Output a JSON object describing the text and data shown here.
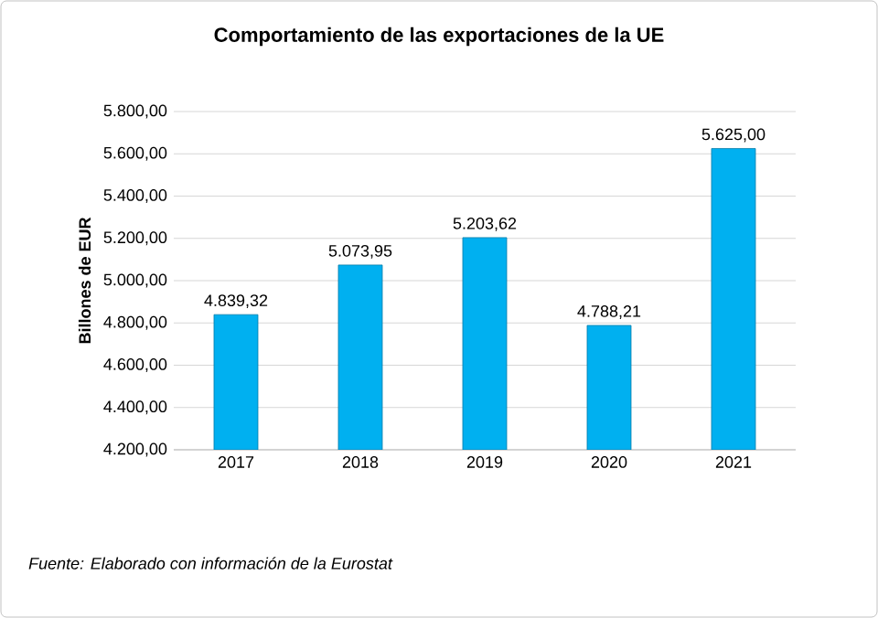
{
  "chart_data": {
    "type": "bar",
    "title": "Comportamiento de las exportaciones de la UE",
    "ylabel": "Billones de EUR",
    "categories": [
      "2017",
      "2018",
      "2019",
      "2020",
      "2021"
    ],
    "values": [
      4839.32,
      5073.95,
      5203.62,
      4788.21,
      5625.0
    ],
    "value_labels": [
      "4.839,32",
      "5.073,95",
      "5.203,62",
      "4.788,21",
      "5.625,00"
    ],
    "color": "#00b0f0",
    "ylim": [
      4200,
      5800
    ],
    "yticks": [
      {
        "value": 4200,
        "label": "4.200,00"
      },
      {
        "value": 4400,
        "label": "4.400,00"
      },
      {
        "value": 4600,
        "label": "4.600,00"
      },
      {
        "value": 4800,
        "label": "4.800,00"
      },
      {
        "value": 5000,
        "label": "5.000,00"
      },
      {
        "value": 5200,
        "label": "5.200,00"
      },
      {
        "value": 5400,
        "label": "5.400,00"
      },
      {
        "value": 5600,
        "label": "5.600,00"
      },
      {
        "value": 5800,
        "label": "5.800,00"
      }
    ],
    "grid": "y",
    "annotations": [
      "Fuente: Elaborado con información de la Eurostat"
    ]
  }
}
